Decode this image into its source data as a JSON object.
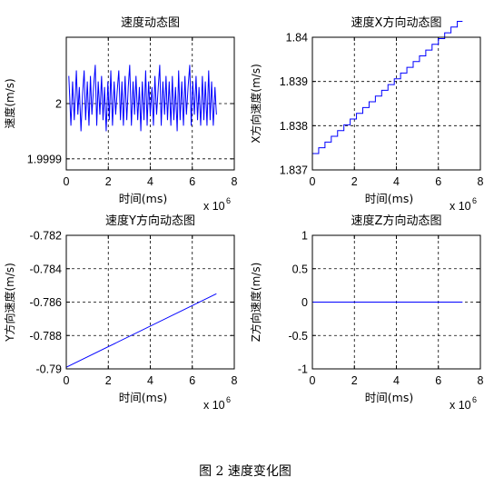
{
  "caption": "图 2  速度变化图",
  "chart_data": [
    {
      "type": "line",
      "title": "速度动态图",
      "xlabel": "时间(ms)",
      "ylabel": "速度(m/s)",
      "x_exponent_base": "x 10",
      "x_exponent_power": "6",
      "xlim": [
        0,
        8
      ],
      "ylim": [
        1.99988,
        2.00012
      ],
      "grid": true,
      "xticks": [
        "0",
        "2",
        "4",
        "6",
        "8"
      ],
      "yticks": [
        {
          "v": 1.9999,
          "t": "1.9999"
        },
        {
          "v": 2.0,
          "t": "2"
        }
      ],
      "series": [
        {
          "x": [
            0.12,
            0.22,
            0.3,
            0.38,
            0.48,
            0.55,
            0.62,
            0.7,
            0.78,
            0.85,
            0.92,
            1.0,
            1.08,
            1.15,
            1.22,
            1.3,
            1.38,
            1.45,
            1.52,
            1.6,
            1.68,
            1.75,
            1.82,
            1.9,
            1.98,
            2.05,
            2.12,
            2.2,
            2.28,
            2.35,
            2.42,
            2.5,
            2.58,
            2.65,
            2.72,
            2.8,
            2.88,
            2.95,
            3.02,
            3.1,
            3.18,
            3.25,
            3.32,
            3.4,
            3.48,
            3.55,
            3.62,
            3.7,
            3.78,
            3.85,
            3.92,
            4.0,
            4.08,
            4.15,
            4.22,
            4.3,
            4.38,
            4.45,
            4.52,
            4.6,
            4.68,
            4.75,
            4.82,
            4.9,
            4.98,
            5.05,
            5.12,
            5.2,
            5.28,
            5.35,
            5.42,
            5.5,
            5.58,
            5.65,
            5.72,
            5.8,
            5.88,
            5.95,
            6.02,
            6.1,
            6.18,
            6.25,
            6.32,
            6.4,
            6.48,
            6.55,
            6.62,
            6.7,
            6.78,
            6.85,
            6.92,
            7.0,
            7.08,
            7.15
          ],
          "y": [
            2.00005,
            1.99996,
            2.00004,
            1.99997,
            2.00006,
            1.99998,
            2.00003,
            1.99995,
            2.00002,
            2.00006,
            1.99997,
            2.00004,
            1.99996,
            2.00005,
            1.99998,
            2.00003,
            2.00007,
            1.99996,
            2.00004,
            1.99998,
            2.00005,
            1.99997,
            2.00003,
            1.99995,
            2.00004,
            1.99997,
            2.00006,
            1.99996,
            2.00004,
            1.99998,
            2.00002,
            2.00006,
            1.99997,
            2.00004,
            1.99996,
            2.00005,
            1.99997,
            2.00003,
            2.00007,
            1.99996,
            2.00004,
            1.99998,
            2.00005,
            1.99997,
            2.00003,
            1.99995,
            2.00004,
            1.99997,
            2.00006,
            1.99996,
            2.00004,
            1.99998,
            2.00003,
            1.99996,
            2.00005,
            1.99998,
            2.00003,
            2.00007,
            1.99996,
            2.00004,
            1.99998,
            2.00005,
            1.99997,
            2.00004,
            1.99996,
            2.00005,
            1.99997,
            2.00003,
            1.99995,
            2.00006,
            1.99997,
            2.00004,
            1.99996,
            2.00005,
            1.99998,
            2.00003,
            2.00007,
            1.99996,
            2.00004,
            1.99998,
            2.00005,
            1.99997,
            2.00003,
            1.99996,
            2.00005,
            1.99997,
            2.00004,
            1.99996,
            2.00006,
            1.99997,
            2.00004,
            1.99996,
            2.00003,
            1.99998
          ]
        }
      ]
    },
    {
      "type": "line",
      "title": "速度X方向动态图",
      "xlabel": "时间(ms)",
      "ylabel": "X方向速度(m/s)",
      "x_exponent_base": "x 10",
      "x_exponent_power": "6",
      "xlim": [
        0,
        8
      ],
      "ylim": [
        1.837,
        1.84
      ],
      "grid": true,
      "xticks": [
        "0",
        "2",
        "4",
        "6",
        "8"
      ],
      "yticks": [
        {
          "v": 1.837,
          "t": "1.837"
        },
        {
          "v": 1.838,
          "t": "1.838"
        },
        {
          "v": 1.839,
          "t": "1.839"
        },
        {
          "v": 1.84,
          "t": "1.84"
        }
      ],
      "series": [
        {
          "x": [
            0.0,
            0.3,
            0.3,
            0.6,
            0.6,
            0.9,
            0.9,
            1.2,
            1.2,
            1.5,
            1.5,
            1.8,
            1.8,
            2.1,
            2.1,
            2.4,
            2.4,
            2.7,
            2.7,
            3.0,
            3.0,
            3.3,
            3.3,
            3.6,
            3.6,
            3.9,
            3.9,
            4.2,
            4.2,
            4.5,
            4.5,
            4.8,
            4.8,
            5.1,
            5.1,
            5.4,
            5.4,
            5.7,
            5.7,
            6.0,
            6.0,
            6.3,
            6.3,
            6.6,
            6.6,
            6.9,
            6.9,
            7.15
          ],
          "y": [
            1.83737,
            1.83737,
            1.8375,
            1.8375,
            1.83763,
            1.83763,
            1.83776,
            1.83776,
            1.83789,
            1.83789,
            1.83802,
            1.83802,
            1.83815,
            1.83815,
            1.83828,
            1.83828,
            1.83841,
            1.83841,
            1.83854,
            1.83854,
            1.83867,
            1.83867,
            1.8388,
            1.8388,
            1.83893,
            1.83893,
            1.83906,
            1.83906,
            1.83919,
            1.83919,
            1.83932,
            1.83932,
            1.83945,
            1.83945,
            1.83958,
            1.83958,
            1.83971,
            1.83971,
            1.83984,
            1.83984,
            1.83997,
            1.83997,
            1.8401,
            1.8401,
            1.84023,
            1.84023,
            1.84036,
            1.84036
          ]
        }
      ]
    },
    {
      "type": "line",
      "title": "速度Y方向动态图",
      "xlabel": "时间(ms)",
      "ylabel": "Y方向速度(m/s)",
      "x_exponent_base": "x 10",
      "x_exponent_power": "6",
      "xlim": [
        0,
        8
      ],
      "ylim": [
        -0.79,
        -0.782
      ],
      "grid": true,
      "xticks": [
        "0",
        "2",
        "4",
        "6",
        "8"
      ],
      "yticks": [
        {
          "v": -0.79,
          "t": "-0.79"
        },
        {
          "v": -0.788,
          "t": "-0.788"
        },
        {
          "v": -0.786,
          "t": "-0.786"
        },
        {
          "v": -0.784,
          "t": "-0.784"
        },
        {
          "v": -0.782,
          "t": "-0.782"
        }
      ],
      "series": [
        {
          "x": [
            0.0,
            7.15
          ],
          "y": [
            -0.7899,
            -0.7855
          ]
        }
      ]
    },
    {
      "type": "line",
      "title": "速度Z方向动态图",
      "xlabel": "时间(ms)",
      "ylabel": "Z方向速度(m/s)",
      "x_exponent_base": "x 10",
      "x_exponent_power": "6",
      "xlim": [
        0,
        8
      ],
      "ylim": [
        -1,
        1
      ],
      "grid": true,
      "xticks": [
        "0",
        "2",
        "4",
        "6",
        "8"
      ],
      "yticks": [
        {
          "v": -1,
          "t": "-1"
        },
        {
          "v": -0.5,
          "t": "-0.5"
        },
        {
          "v": 0,
          "t": "0"
        },
        {
          "v": 0.5,
          "t": "0.5"
        },
        {
          "v": 1,
          "t": "1"
        }
      ],
      "series": [
        {
          "x": [
            0.0,
            7.15
          ],
          "y": [
            0,
            0
          ]
        }
      ]
    }
  ]
}
